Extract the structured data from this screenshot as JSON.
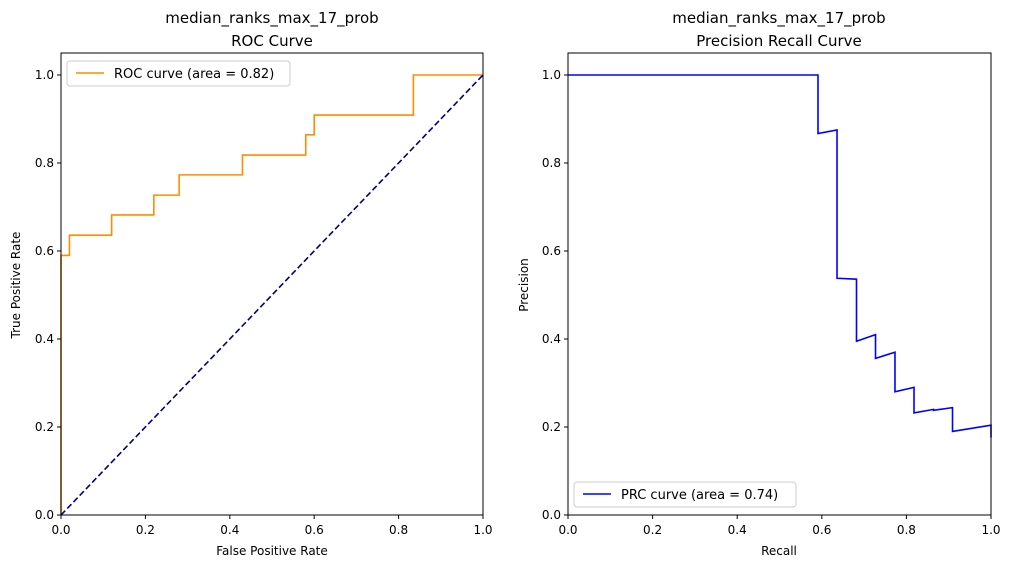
{
  "chart_data": [
    {
      "type": "line",
      "title_line1": "median_ranks_max_17_prob",
      "title_line2": "ROC Curve",
      "xlabel": "False Positive Rate",
      "ylabel": "True Positive Rate",
      "xlim": [
        0,
        1
      ],
      "ylim": [
        0,
        1.05
      ],
      "xticks": [
        "0.0",
        "0.2",
        "0.4",
        "0.6",
        "0.8",
        "1.0"
      ],
      "yticks": [
        "0.0",
        "0.2",
        "0.4",
        "0.6",
        "0.8",
        "1.0"
      ],
      "grid": false,
      "legend_position": "upper-left",
      "series": [
        {
          "name": "ROC curve (area = 0.82)",
          "color": "#ff8c00",
          "style": "solid",
          "x": [
            0,
            0,
            0.02,
            0.02,
            0.12,
            0.12,
            0.22,
            0.22,
            0.28,
            0.28,
            0.43,
            0.43,
            0.58,
            0.58,
            0.6,
            0.6,
            0.835,
            0.835,
            1.0
          ],
          "y": [
            0,
            0.59,
            0.59,
            0.636,
            0.636,
            0.682,
            0.682,
            0.727,
            0.727,
            0.773,
            0.773,
            0.818,
            0.818,
            0.864,
            0.864,
            0.909,
            0.909,
            1.0,
            1.0
          ]
        },
        {
          "color": "#000080",
          "style": "dashed",
          "x": [
            0,
            1
          ],
          "y": [
            0,
            1
          ]
        }
      ]
    },
    {
      "type": "line",
      "title_line1": "median_ranks_max_17_prob",
      "title_line2": "Precision Recall Curve",
      "xlabel": "Recall",
      "ylabel": "Precision",
      "xlim": [
        0,
        1
      ],
      "ylim": [
        0,
        1.05
      ],
      "xticks": [
        "0.0",
        "0.2",
        "0.4",
        "0.6",
        "0.8",
        "1.0"
      ],
      "yticks": [
        "0.0",
        "0.2",
        "0.4",
        "0.6",
        "0.8",
        "1.0"
      ],
      "grid": false,
      "legend_position": "lower-left",
      "series": [
        {
          "name": "PRC curve (area = 0.74)",
          "color": "#0000ff",
          "style": "solid",
          "x": [
            0,
            0.591,
            0.591,
            0.636,
            0.636,
            0.636,
            0.682,
            0.682,
            0.727,
            0.727,
            0.773,
            0.773,
            0.818,
            0.818,
            0.864,
            0.864,
            0.909,
            0.909,
            1.0,
            1.0
          ],
          "y": [
            1.0,
            1.0,
            0.867,
            0.875,
            0.538,
            0.538,
            0.536,
            0.395,
            0.41,
            0.356,
            0.37,
            0.28,
            0.29,
            0.232,
            0.24,
            0.238,
            0.244,
            0.19,
            0.204,
            0.176
          ]
        }
      ]
    }
  ]
}
